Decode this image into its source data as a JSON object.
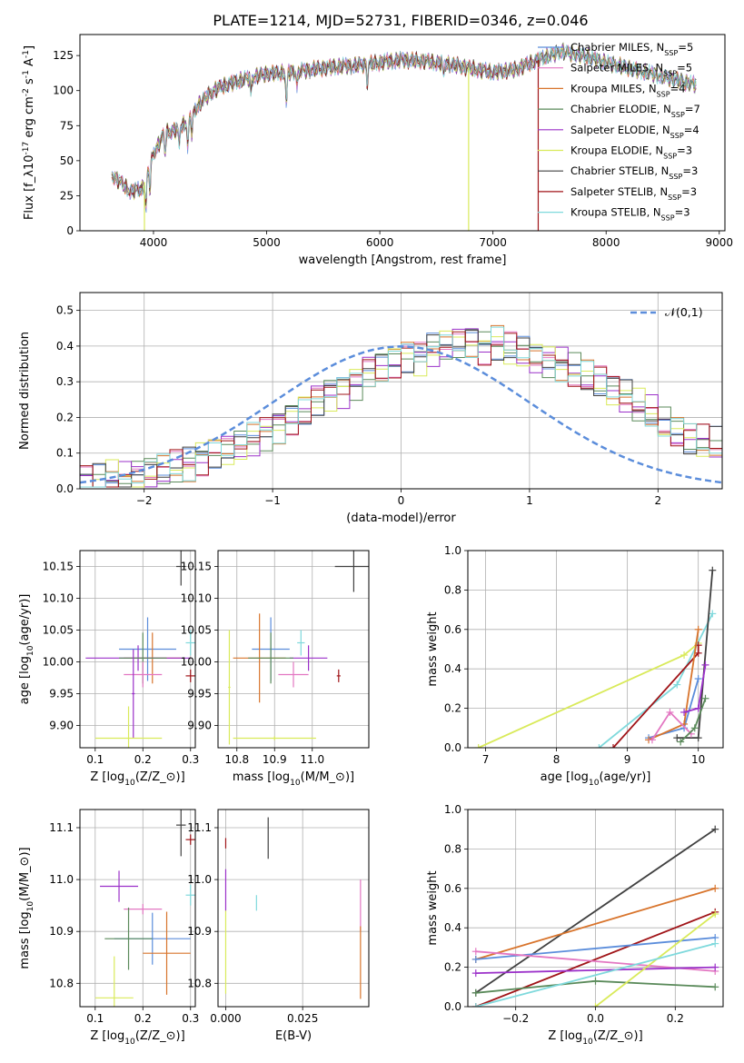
{
  "figure": {
    "title": "PLATE=1214, MJD=52731, FIBERID=0346, z=0.046"
  },
  "colors": {
    "Chabrier MILES": "#5b8ddb",
    "Salpeter MILES": "#e377c2",
    "Kroupa MILES": "#d8742c",
    "Chabrier ELODIE": "#5a8a5a",
    "Salpeter ELODIE": "#9b30c9",
    "Kroupa ELODIE": "#d9ea5a",
    "Chabrier STELIB": "#404040",
    "Salpeter STELIB": "#a01418",
    "Kroupa STELIB": "#7fd9dc",
    "normal_curve": "#5b8ddb",
    "grid": "#b0b0b0"
  },
  "chart_data": [
    {
      "id": "spectrum",
      "type": "line",
      "xlabel": "wavelength [Angstrom, rest frame]",
      "ylabel": "Flux [f$_\\lambda$10$^{-17}$ erg cm$^{-2}$ s$^{-1}$ A$^{-1}$]",
      "xlim": [
        3350,
        9050
      ],
      "ylim": [
        0,
        140
      ],
      "xticks": [
        4000,
        5000,
        6000,
        7000,
        8000,
        9000
      ],
      "yticks": [
        0,
        25,
        50,
        75,
        100,
        125
      ],
      "grid": false,
      "legend_position": "top-right",
      "legend": [
        {
          "label": "Chabrier MILES, N",
          "sub": "SSP",
          "tail": "=5",
          "series": "Chabrier MILES"
        },
        {
          "label": "Salpeter MILES, N",
          "sub": "SSP",
          "tail": "=5",
          "series": "Salpeter MILES"
        },
        {
          "label": "Kroupa MILES, N",
          "sub": "SSP",
          "tail": "=4",
          "series": "Kroupa MILES"
        },
        {
          "label": "Chabrier ELODIE, N",
          "sub": "SSP",
          "tail": "=7",
          "series": "Chabrier ELODIE"
        },
        {
          "label": "Salpeter ELODIE, N",
          "sub": "SSP",
          "tail": "=4",
          "series": "Salpeter ELODIE"
        },
        {
          "label": "Kroupa ELODIE, N",
          "sub": "SSP",
          "tail": "=3",
          "series": "Kroupa ELODIE"
        },
        {
          "label": "Chabrier STELIB, N",
          "sub": "SSP",
          "tail": "=3",
          "series": "Chabrier STELIB"
        },
        {
          "label": "Salpeter STELIB, N",
          "sub": "SSP",
          "tail": "=3",
          "series": "Salpeter STELIB"
        },
        {
          "label": "Kroupa STELIB, N",
          "sub": "SSP",
          "tail": "=3",
          "series": "Kroupa STELIB"
        }
      ],
      "continuum": {
        "x": [
          3630,
          3700,
          3800,
          3900,
          3950,
          4000,
          4100,
          4200,
          4300,
          4400,
          4500,
          4600,
          4800,
          5000,
          5200,
          5400,
          5600,
          5800,
          6000,
          6100,
          6200,
          6400,
          6600,
          6800,
          7000,
          7200,
          7400,
          7600,
          7800,
          8000,
          8200,
          8400,
          8600,
          8800
        ],
        "y": [
          40,
          35,
          28,
          30,
          42,
          55,
          70,
          72,
          78,
          90,
          98,
          103,
          108,
          112,
          113,
          115,
          117,
          118,
          120,
          121,
          122,
          121,
          119,
          116,
          113,
          115,
          122,
          128,
          125,
          120,
          116,
          112,
          108,
          104
        ]
      },
      "absorption_lines": [
        {
          "x": 3934,
          "depth": 22
        },
        {
          "x": 3969,
          "depth": 18
        },
        {
          "x": 4102,
          "depth": 15
        },
        {
          "x": 4226,
          "depth": 14
        },
        {
          "x": 4304,
          "depth": 20
        },
        {
          "x": 4340,
          "depth": 14
        },
        {
          "x": 4861,
          "depth": 12
        },
        {
          "x": 5175,
          "depth": 25
        },
        {
          "x": 5270,
          "depth": 10
        },
        {
          "x": 5890,
          "depth": 14
        },
        {
          "x": 6563,
          "depth": 10
        }
      ],
      "vertical_drops": [
        {
          "series": "Kroupa ELODIE",
          "x": 3920
        },
        {
          "series": "Kroupa ELODIE",
          "x": 6785
        },
        {
          "series": "Salpeter STELIB",
          "x": 7400
        }
      ],
      "series_x_max": {
        "Salpeter STELIB": 7400
      }
    },
    {
      "id": "residuals",
      "type": "step-histogram",
      "xlabel": "(data-model)/error",
      "ylabel": "Normed distribution",
      "xlim": [
        -2.5,
        2.5
      ],
      "ylim": [
        0,
        0.55
      ],
      "xticks": [
        -2,
        -1,
        0,
        1,
        2
      ],
      "yticks": [
        0.0,
        0.1,
        0.2,
        0.3,
        0.4,
        0.5
      ],
      "grid": true,
      "legend_position": "top-right",
      "legend_label": "$\\mathcal{N}(0,1)$",
      "bin_width": 0.1,
      "bin_start": -2.5,
      "series": [
        {
          "name": "Chabrier MILES",
          "values": [
            0.02,
            0.02,
            0.03,
            0.03,
            0.04,
            0.05,
            0.05,
            0.06,
            0.07,
            0.09,
            0.11,
            0.11,
            0.12,
            0.14,
            0.16,
            0.18,
            0.2,
            0.22,
            0.25,
            0.27,
            0.28,
            0.3,
            0.33,
            0.34,
            0.36,
            0.38,
            0.37,
            0.39,
            0.4,
            0.41,
            0.42,
            0.4,
            0.41,
            0.39,
            0.38,
            0.37,
            0.36,
            0.35,
            0.33,
            0.31,
            0.3,
            0.28,
            0.26,
            0.23,
            0.21,
            0.18,
            0.16,
            0.14,
            0.13,
            0.12
          ]
        }
      ]
    },
    {
      "id": "age_vs_Z",
      "type": "errorbar",
      "xlabel": "Z [log$_{10}$($Z/Z_\\odot$)]",
      "ylabel": "age  [log$_{10}$($age/yr$)]",
      "xlim": [
        0.068,
        0.31
      ],
      "ylim": [
        9.865,
        10.175
      ],
      "xticks": [
        0.1,
        0.2,
        0.3
      ],
      "yticks": [
        9.9,
        9.95,
        10.0,
        10.05,
        10.1,
        10.15
      ],
      "grid": true,
      "points": [
        {
          "series": "Chabrier STELIB",
          "x": 0.28,
          "xerr": 0.01,
          "y": 10.15,
          "yerr": 0.03
        },
        {
          "series": "Chabrier MILES",
          "x": 0.21,
          "xerr": 0.06,
          "y": 10.02,
          "yerr": 0.05
        },
        {
          "series": "Kroupa MILES",
          "x": 0.22,
          "xerr": 0.06,
          "y": 10.006,
          "yerr": 0.04
        },
        {
          "series": "Salpeter ELODIE",
          "x": 0.19,
          "xerr": 0.11,
          "y": 10.006,
          "yerr": 0.02
        },
        {
          "series": "Chabrier ELODIE",
          "x": 0.2,
          "xerr": 0.05,
          "y": 10.006,
          "yerr": 0.04
        },
        {
          "series": "Salpeter MILES",
          "x": 0.2,
          "xerr": 0.04,
          "y": 9.98,
          "yerr": 0.02
        },
        {
          "series": "Salpeter ELODIE",
          "x": 0.18,
          "xerr": 0.003,
          "y": 9.95,
          "yerr": 0.07
        },
        {
          "series": "Kroupa ELODIE",
          "x": 0.17,
          "xerr": 0.07,
          "y": 9.88,
          "yerr": 0.05
        },
        {
          "series": "Kroupa STELIB",
          "x": 0.3,
          "xerr": 0.01,
          "y": 10.03,
          "yerr": 0.02
        },
        {
          "series": "Salpeter STELIB",
          "x": 0.3,
          "xerr": 0.01,
          "y": 9.978,
          "yerr": 0.01
        }
      ]
    },
    {
      "id": "age_vs_mass",
      "type": "errorbar",
      "xlabel": "mass [log$_{10}$($M/M_\\odot$)]",
      "ylabel": "",
      "xlim": [
        10.75,
        11.15
      ],
      "ylim": [
        9.865,
        10.175
      ],
      "xticks": [
        10.8,
        10.9,
        11.0
      ],
      "yticks": [
        9.9,
        9.95,
        10.0,
        10.05,
        10.1,
        10.15
      ],
      "grid": true,
      "points": [
        {
          "series": "Chabrier STELIB",
          "x": 11.11,
          "xerr": 0.05,
          "y": 10.15,
          "yerr": 0.04
        },
        {
          "series": "Chabrier MILES",
          "x": 10.89,
          "xerr": 0.05,
          "y": 10.02,
          "yerr": 0.05
        },
        {
          "series": "Kroupa MILES",
          "x": 10.86,
          "xerr": 0.07,
          "y": 10.006,
          "yerr": 0.07
        },
        {
          "series": "Salpeter ELODIE",
          "x": 10.99,
          "xerr": 0.05,
          "y": 10.006,
          "yerr": 0.02
        },
        {
          "series": "Chabrier ELODIE",
          "x": 10.89,
          "xerr": 0.06,
          "y": 10.006,
          "yerr": 0.04
        },
        {
          "series": "Salpeter MILES",
          "x": 10.95,
          "xerr": 0.04,
          "y": 9.98,
          "yerr": 0.02
        },
        {
          "series": "Kroupa ELODIE",
          "x": 10.78,
          "xerr": 0.003,
          "y": 9.96,
          "yerr": 0.09
        },
        {
          "series": "Kroupa ELODIE",
          "x": 10.9,
          "xerr": 0.11,
          "y": 9.88,
          "yerr": 0.003
        },
        {
          "series": "Kroupa STELIB",
          "x": 10.97,
          "xerr": 0.01,
          "y": 10.03,
          "yerr": 0.02
        },
        {
          "series": "Salpeter STELIB",
          "x": 11.07,
          "xerr": 0.005,
          "y": 9.978,
          "yerr": 0.01
        }
      ]
    },
    {
      "id": "weight_vs_age",
      "type": "line",
      "xlabel": "age  [log$_{10}$($age/yr$)]",
      "ylabel": "mass weight",
      "xlim": [
        6.75,
        10.35
      ],
      "ylim": [
        0,
        1.0
      ],
      "xticks": [
        7,
        8,
        9,
        10
      ],
      "yticks": [
        0.0,
        0.2,
        0.4,
        0.6,
        0.8,
        1.0
      ],
      "grid": true,
      "series": [
        {
          "name": "Kroupa ELODIE",
          "x": [
            6.9,
            9.8,
            10.0
          ],
          "y": [
            0.0,
            0.47,
            0.53
          ]
        },
        {
          "name": "Kroupa STELIB",
          "x": [
            8.6,
            9.7,
            10.2
          ],
          "y": [
            0.0,
            0.32,
            0.68
          ]
        },
        {
          "name": "Salpeter STELIB",
          "x": [
            8.8,
            10.0,
            10.0
          ],
          "y": [
            0.0,
            0.48,
            0.52
          ]
        },
        {
          "name": "Chabrier STELIB",
          "x": [
            9.7,
            10.0,
            10.2
          ],
          "y": [
            0.05,
            0.05,
            0.9
          ]
        },
        {
          "name": "Chabrier MILES",
          "x": [
            9.3,
            9.8,
            10.0
          ],
          "y": [
            0.05,
            0.1,
            0.35
          ]
        },
        {
          "name": "Kroupa MILES",
          "x": [
            9.3,
            9.8,
            10.0
          ],
          "y": [
            0.04,
            0.12,
            0.6
          ]
        },
        {
          "name": "Salpeter MILES",
          "x": [
            9.35,
            9.6,
            9.9
          ],
          "y": [
            0.04,
            0.18,
            0.07
          ]
        },
        {
          "name": "Salpeter ELODIE",
          "x": [
            9.8,
            10.0,
            10.1
          ],
          "y": [
            0.18,
            0.2,
            0.42
          ]
        },
        {
          "name": "Chabrier ELODIE",
          "x": [
            9.75,
            9.95,
            10.1
          ],
          "y": [
            0.03,
            0.1,
            0.25
          ]
        }
      ]
    },
    {
      "id": "mass_vs_Z",
      "type": "errorbar",
      "xlabel": "Z [log$_{10}$($Z/Z_\\odot$)]",
      "ylabel": "mass [log$_{10}$($M/M_\\odot$)]",
      "xlim": [
        0.068,
        0.31
      ],
      "ylim": [
        10.755,
        11.135
      ],
      "xticks": [
        0.1,
        0.2,
        0.3
      ],
      "yticks": [
        10.8,
        10.9,
        11.0,
        11.1
      ],
      "grid": true,
      "points": [
        {
          "series": "Chabrier STELIB",
          "x": 0.28,
          "xerr": 0.01,
          "y": 11.105,
          "yerr": 0.06
        },
        {
          "series": "Salpeter STELIB",
          "x": 0.3,
          "xerr": 0.01,
          "y": 11.077,
          "yerr": 0.01
        },
        {
          "series": "Salpeter ELODIE",
          "x": 0.15,
          "xerr": 0.04,
          "y": 10.987,
          "yerr": 0.03
        },
        {
          "series": "Salpeter MILES",
          "x": 0.2,
          "xerr": 0.04,
          "y": 10.943,
          "yerr": 0.01
        },
        {
          "series": "Chabrier MILES",
          "x": 0.22,
          "xerr": 0.08,
          "y": 10.886,
          "yerr": 0.05
        },
        {
          "series": "Chabrier ELODIE",
          "x": 0.17,
          "xerr": 0.05,
          "y": 10.886,
          "yerr": 0.06
        },
        {
          "series": "Kroupa MILES",
          "x": 0.25,
          "xerr": 0.05,
          "y": 10.858,
          "yerr": 0.08
        },
        {
          "series": "Kroupa ELODIE",
          "x": 0.14,
          "xerr": 0.04,
          "y": 10.772,
          "yerr": 0.08
        },
        {
          "series": "Kroupa STELIB",
          "x": 0.3,
          "xerr": 0.01,
          "y": 10.97,
          "yerr": 0.02
        }
      ]
    },
    {
      "id": "mass_vs_ebv",
      "type": "errorbar",
      "xlabel": "E(B-V)",
      "ylabel": "",
      "xlim": [
        -0.0025,
        0.0465
      ],
      "ylim": [
        10.755,
        11.135
      ],
      "xticks": [
        0.0,
        0.025
      ],
      "xticklabels": [
        "0.000",
        "0.025"
      ],
      "yticks": [
        10.8,
        10.9,
        11.0,
        11.1
      ],
      "grid": true,
      "points": [
        {
          "series": "Salpeter STELIB",
          "x": 0.0,
          "xerr": 0.0,
          "y": 11.07,
          "yerr": 0.01
        },
        {
          "series": "Chabrier STELIB",
          "x": 0.0138,
          "xerr": 0.0,
          "y": 11.08,
          "yerr": 0.04
        },
        {
          "series": "Salpeter ELODIE",
          "x": 0.0,
          "xerr": 0.0,
          "y": 10.98,
          "yerr": 0.04
        },
        {
          "series": "Kroupa STELIB",
          "x": 0.01,
          "xerr": 0.0,
          "y": 10.955,
          "yerr": 0.015
        },
        {
          "series": "Kroupa ELODIE",
          "x": 0.0,
          "xerr": 0.0,
          "y": 10.86,
          "yerr": 0.08
        },
        {
          "series": "Salpeter MILES",
          "x": 0.0438,
          "xerr": 0.0,
          "y": 10.95,
          "yerr": 0.05
        },
        {
          "series": "Kroupa MILES",
          "x": 0.0438,
          "xerr": 0.0,
          "y": 10.84,
          "yerr": 0.07
        }
      ]
    },
    {
      "id": "weight_vs_Z",
      "type": "line",
      "xlabel": "Z [log$_{10}$($Z/Z_\\odot$)]",
      "ylabel": "mass weight",
      "xlim": [
        -0.32,
        0.32
      ],
      "ylim": [
        0,
        1.0
      ],
      "xticks": [
        -0.2,
        0.0,
        0.2
      ],
      "yticks": [
        0.0,
        0.2,
        0.4,
        0.6,
        0.8,
        1.0
      ],
      "grid": true,
      "series": [
        {
          "name": "Chabrier STELIB",
          "x": [
            -0.3,
            0.3
          ],
          "y": [
            0.07,
            0.9
          ]
        },
        {
          "name": "Kroupa MILES",
          "x": [
            -0.3,
            0.3
          ],
          "y": [
            0.24,
            0.6
          ]
        },
        {
          "name": "Salpeter STELIB",
          "x": [
            -0.3,
            0.3
          ],
          "y": [
            0.0,
            0.48
          ]
        },
        {
          "name": "Chabrier MILES",
          "x": [
            -0.3,
            0.3
          ],
          "y": [
            0.24,
            0.35
          ]
        },
        {
          "name": "Salpeter MILES",
          "x": [
            -0.3,
            0.3
          ],
          "y": [
            0.28,
            0.18
          ]
        },
        {
          "name": "Salpeter ELODIE",
          "x": [
            -0.3,
            0.3
          ],
          "y": [
            0.17,
            0.2
          ]
        },
        {
          "name": "Chabrier ELODIE",
          "x": [
            -0.3,
            0.0,
            0.3
          ],
          "y": [
            0.07,
            0.13,
            0.1
          ]
        },
        {
          "name": "Kroupa ELODIE",
          "x": [
            0.0,
            0.3
          ],
          "y": [
            0.0,
            0.47
          ]
        },
        {
          "name": "Kroupa STELIB",
          "x": [
            -0.3,
            0.3
          ],
          "y": [
            0.0,
            0.32
          ]
        }
      ]
    }
  ]
}
